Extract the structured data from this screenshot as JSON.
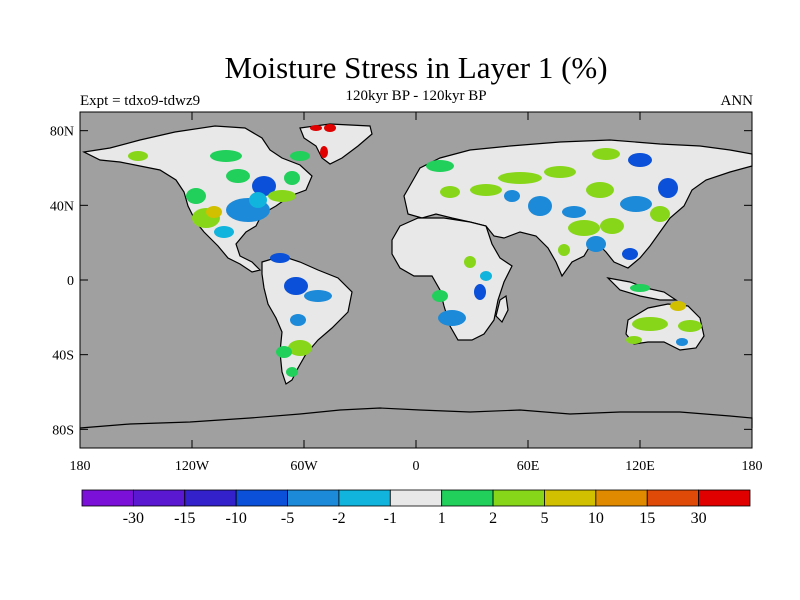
{
  "header": {
    "title": "Moisture Stress in Layer 1 (%)",
    "subtitle": "120kyr BP - 120kyr BP",
    "left_label": "Expt = tdxo9-tdwz9",
    "right_label": "ANN"
  },
  "map": {
    "lat_ticks": [
      {
        "lat": 80,
        "label": "80N"
      },
      {
        "lat": 40,
        "label": "40N"
      },
      {
        "lat": 0,
        "label": "0"
      },
      {
        "lat": -40,
        "label": "40S"
      },
      {
        "lat": -80,
        "label": "80S"
      }
    ],
    "lon_ticks": [
      {
        "lon": -180,
        "label": "180"
      },
      {
        "lon": -120,
        "label": "120W"
      },
      {
        "lon": -60,
        "label": "60W"
      },
      {
        "lon": 0,
        "label": "0"
      },
      {
        "lon": 60,
        "label": "60E"
      },
      {
        "lon": 120,
        "label": "120E"
      },
      {
        "lon": 180,
        "label": "180"
      }
    ],
    "background_color": "#a0a0a0",
    "land_color": "#e8e8e8",
    "coastline_color": "#000000"
  },
  "colorbar": {
    "colors": [
      "#7b10d8",
      "#5a18d0",
      "#3322cc",
      "#0a50d8",
      "#1c8ad8",
      "#10b4dc",
      "#e8e8e8",
      "#20d05a",
      "#88d61a",
      "#d0c000",
      "#e08a00",
      "#e04a08",
      "#e00000"
    ],
    "labels": [
      "-30",
      "-15",
      "-10",
      "-5",
      "-2",
      "-1",
      "1",
      "2",
      "5",
      "10",
      "15",
      "30"
    ]
  }
}
